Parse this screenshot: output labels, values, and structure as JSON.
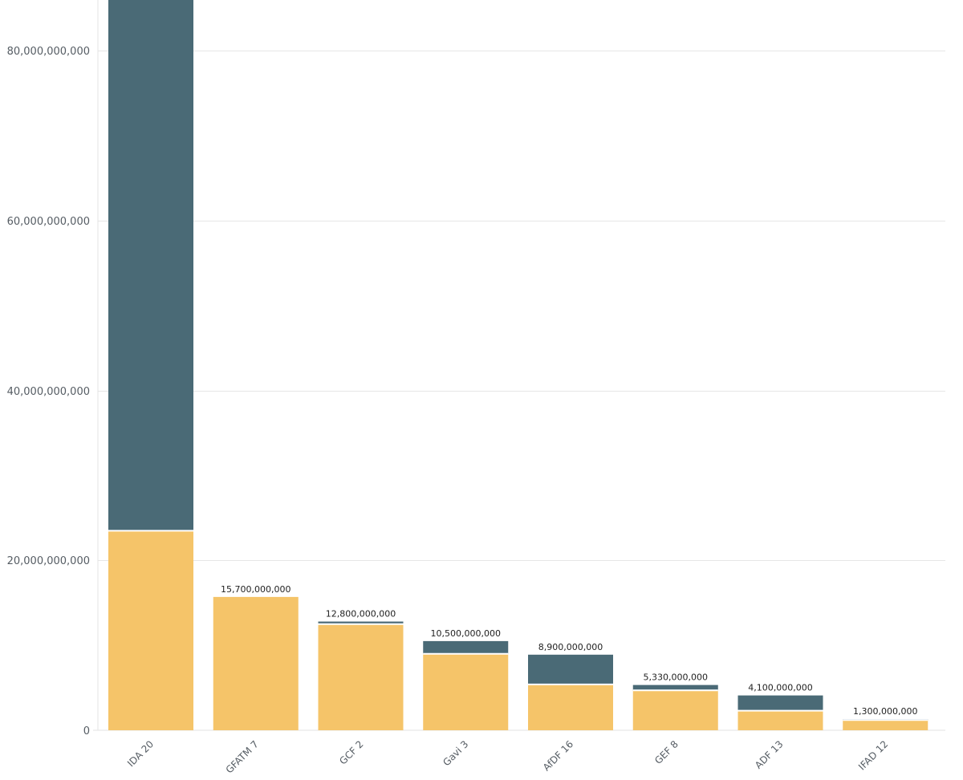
{
  "chart_data": {
    "type": "bar",
    "stacked": true,
    "categories": [
      "IDA 20",
      "GFATM 7",
      "GCF 2",
      "Gavi 3",
      "AfDF 16",
      "GEF 8",
      "ADF 13",
      "IFAD 12"
    ],
    "series": [
      {
        "values": [
          23500000000,
          15700000000,
          12500000000,
          9000000000,
          5400000000,
          4700000000,
          2300000000,
          1200000000
        ],
        "color": "#f5c469"
      },
      {
        "values": [
          69500000000,
          0,
          300000000,
          1500000000,
          3500000000,
          630000000,
          1800000000,
          100000000
        ],
        "color": "#4a6a76"
      }
    ],
    "data_labels": [
      "",
      "15,700,000,000",
      "12,800,000,000",
      "10,500,000,000",
      "8,900,000,000",
      "5,330,000,000",
      "4,100,000,000",
      "1,300,000,000"
    ],
    "y_ticks": [
      0,
      20000000000,
      40000000000,
      60000000000,
      80000000000
    ],
    "y_tick_labels": [
      "0",
      "20,000,000,000",
      "40,000,000,000",
      "60,000,000,000",
      "80,000,000,000"
    ],
    "ylim": [
      0,
      86000000000
    ],
    "grid": true,
    "title": "",
    "xlabel": "",
    "ylabel": ""
  }
}
